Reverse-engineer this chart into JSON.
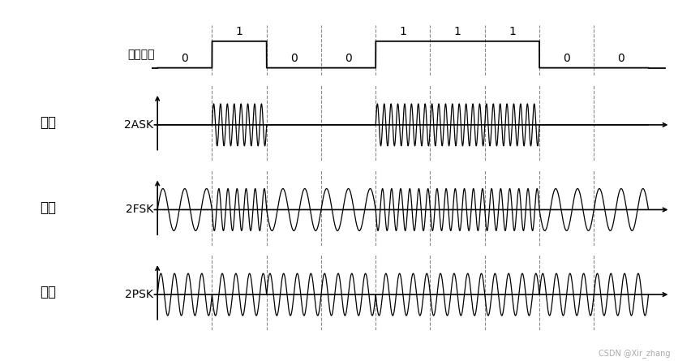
{
  "bits": [
    0,
    1,
    0,
    0,
    1,
    1,
    1,
    0,
    0
  ],
  "bit_duration": 1.0,
  "total_bits": 9,
  "ask_high_freq": 8,
  "fsk_high_freq": 6,
  "fsk_low_freq": 2.5,
  "psk_freq": 4,
  "background_color": "#ffffff",
  "signal_color": "#000000",
  "dashed_color": "#888888",
  "label_color": "#000000",
  "left_labels": [
    "调幅",
    "调频",
    "调相"
  ],
  "left_sublabels": [
    "2ASK",
    "2FSK",
    "2PSK"
  ],
  "baseband_label": "基带信号",
  "watermark": "CSDN @Xir_zhang"
}
